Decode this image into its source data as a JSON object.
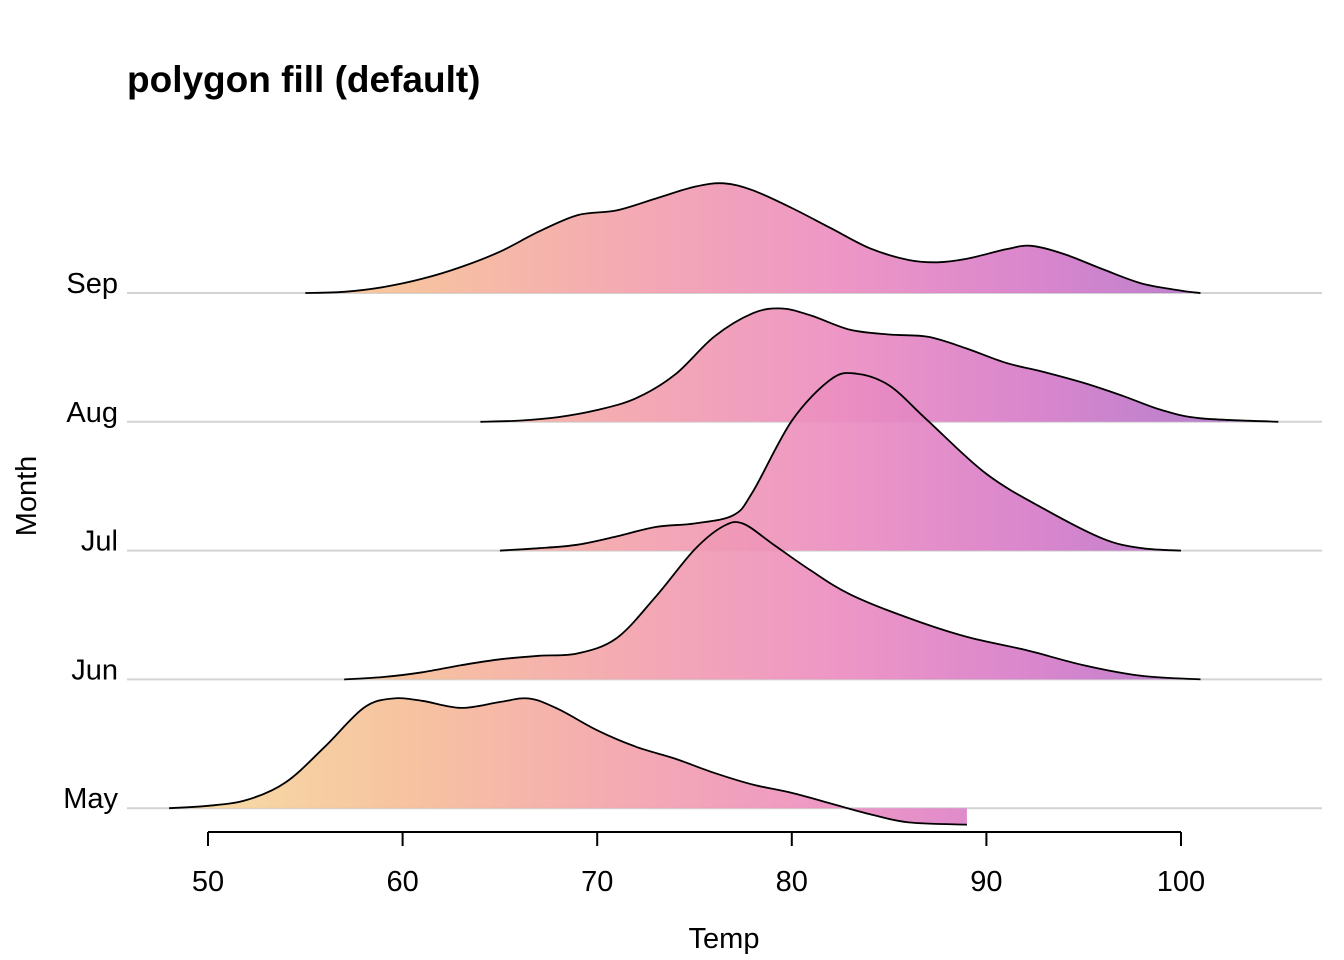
{
  "chart_data": {
    "type": "ridgeline",
    "title": "polygon fill (default)",
    "xlabel": "Temp",
    "ylabel": "Month",
    "xlim": [
      50,
      100
    ],
    "x_ticks": [
      50,
      60,
      70,
      80,
      90,
      100
    ],
    "grid": "horizontal baselines only",
    "fill": "gradient by x (plasma palette: beige to pink to purple)",
    "series": [
      {
        "name": "May",
        "x_range": [
          48,
          89
        ],
        "points": [
          [
            48,
            0.0
          ],
          [
            50,
            0.02
          ],
          [
            52,
            0.07
          ],
          [
            54,
            0.22
          ],
          [
            56,
            0.52
          ],
          [
            58,
            0.85
          ],
          [
            59.5,
            0.93
          ],
          [
            61,
            0.91
          ],
          [
            63,
            0.85
          ],
          [
            65,
            0.9
          ],
          [
            66.5,
            0.93
          ],
          [
            68,
            0.84
          ],
          [
            70,
            0.66
          ],
          [
            72,
            0.52
          ],
          [
            74,
            0.42
          ],
          [
            76,
            0.3
          ],
          [
            78,
            0.2
          ],
          [
            80,
            0.13
          ],
          [
            82,
            0.04
          ],
          [
            84,
            -0.05
          ],
          [
            86,
            -0.12
          ],
          [
            89,
            -0.14
          ]
        ]
      },
      {
        "name": "Jun",
        "x_range": [
          57,
          101
        ],
        "points": [
          [
            57,
            0.0
          ],
          [
            59,
            0.02
          ],
          [
            61,
            0.06
          ],
          [
            63,
            0.12
          ],
          [
            65,
            0.17
          ],
          [
            67,
            0.2
          ],
          [
            69,
            0.22
          ],
          [
            71,
            0.35
          ],
          [
            73,
            0.7
          ],
          [
            75,
            1.1
          ],
          [
            76.5,
            1.3
          ],
          [
            77.5,
            1.32
          ],
          [
            79,
            1.15
          ],
          [
            81,
            0.92
          ],
          [
            83,
            0.72
          ],
          [
            86,
            0.52
          ],
          [
            89,
            0.36
          ],
          [
            92,
            0.25
          ],
          [
            95,
            0.12
          ],
          [
            98,
            0.03
          ],
          [
            101,
            0.0
          ]
        ]
      },
      {
        "name": "Jul",
        "x_range": [
          65,
          100
        ],
        "points": [
          [
            65,
            0.0
          ],
          [
            67,
            0.02
          ],
          [
            69,
            0.05
          ],
          [
            71,
            0.12
          ],
          [
            73,
            0.2
          ],
          [
            75,
            0.23
          ],
          [
            77,
            0.3
          ],
          [
            78,
            0.5
          ],
          [
            80,
            1.1
          ],
          [
            82,
            1.45
          ],
          [
            83.3,
            1.5
          ],
          [
            85,
            1.4
          ],
          [
            87,
            1.1
          ],
          [
            90,
            0.65
          ],
          [
            93,
            0.35
          ],
          [
            96,
            0.1
          ],
          [
            98,
            0.02
          ],
          [
            100,
            0.0
          ]
        ]
      },
      {
        "name": "Aug",
        "x_range": [
          64,
          105
        ],
        "points": [
          [
            64,
            0.0
          ],
          [
            66,
            0.01
          ],
          [
            68,
            0.04
          ],
          [
            70,
            0.1
          ],
          [
            72,
            0.2
          ],
          [
            74,
            0.4
          ],
          [
            76,
            0.72
          ],
          [
            78,
            0.92
          ],
          [
            79.5,
            0.96
          ],
          [
            81,
            0.9
          ],
          [
            83,
            0.78
          ],
          [
            85,
            0.74
          ],
          [
            87,
            0.72
          ],
          [
            89,
            0.62
          ],
          [
            91,
            0.5
          ],
          [
            93,
            0.42
          ],
          [
            95,
            0.33
          ],
          [
            97,
            0.22
          ],
          [
            99,
            0.1
          ],
          [
            101,
            0.03
          ],
          [
            105,
            0.0
          ]
        ]
      },
      {
        "name": "Sep",
        "x_range": [
          55,
          101
        ],
        "points": [
          [
            55,
            0.0
          ],
          [
            57,
            0.01
          ],
          [
            59,
            0.05
          ],
          [
            61,
            0.12
          ],
          [
            63,
            0.22
          ],
          [
            65,
            0.35
          ],
          [
            67,
            0.52
          ],
          [
            69,
            0.66
          ],
          [
            71,
            0.7
          ],
          [
            73,
            0.8
          ],
          [
            75,
            0.9
          ],
          [
            76.5,
            0.93
          ],
          [
            78,
            0.87
          ],
          [
            80,
            0.72
          ],
          [
            82,
            0.55
          ],
          [
            84,
            0.38
          ],
          [
            86,
            0.28
          ],
          [
            87.5,
            0.26
          ],
          [
            89,
            0.29
          ],
          [
            91,
            0.37
          ],
          [
            92.3,
            0.4
          ],
          [
            94,
            0.33
          ],
          [
            96,
            0.2
          ],
          [
            98,
            0.08
          ],
          [
            100,
            0.02
          ],
          [
            101,
            0.0
          ]
        ]
      }
    ]
  }
}
